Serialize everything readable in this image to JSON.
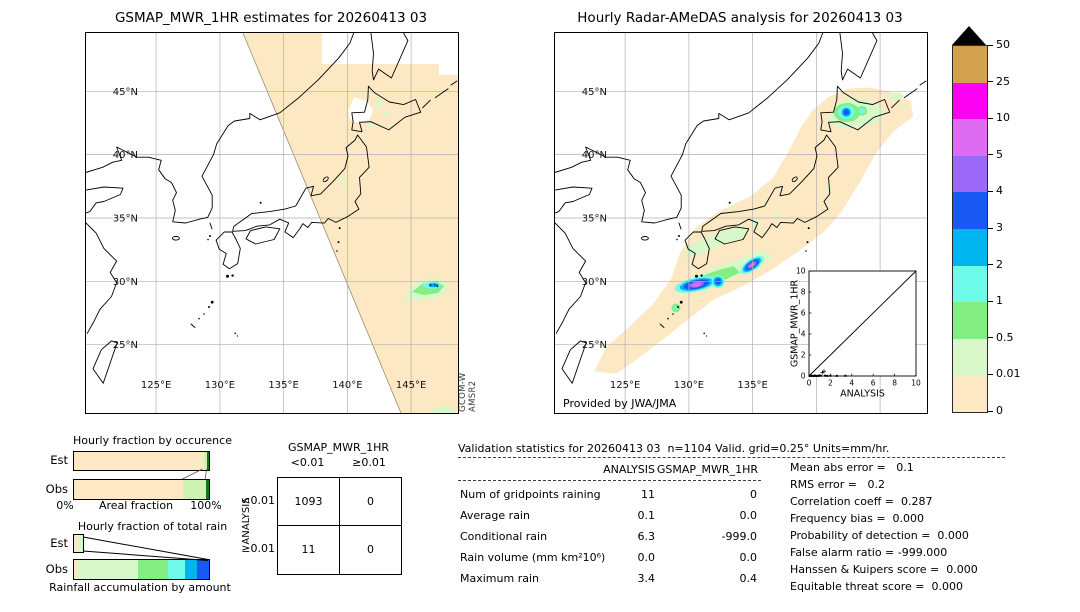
{
  "left_map": {
    "title": "GSMAP_MWR_1HR estimates for 20260413 03",
    "lat_labels": [
      "45°N",
      "40°N",
      "35°N",
      "30°N",
      "25°N"
    ],
    "lon_labels": [
      "125°E",
      "130°E",
      "135°E",
      "140°E",
      "145°E"
    ],
    "credit_lines": [
      "GCOM-W",
      "AMSR2"
    ]
  },
  "right_map": {
    "title": "Hourly Radar-AMeDAS analysis for 20260413 03",
    "lat_labels": [
      "45°N",
      "40°N",
      "35°N",
      "30°N",
      "25°N"
    ],
    "lon_labels": [
      "125°E",
      "130°E",
      "135°E"
    ],
    "provided": "Provided by JWA/JMA",
    "inset": {
      "xlabel": "ANALYSIS",
      "ylabel": "GSMAP_MWR_1HR",
      "tick_labels": [
        "0",
        "2",
        "4",
        "6",
        "8",
        "10"
      ]
    }
  },
  "colorbar": {
    "labels": [
      "50",
      "25",
      "10",
      "5",
      "4",
      "3",
      "2",
      "1",
      "0.5",
      "0.01",
      "0"
    ]
  },
  "occurrence_chart": {
    "title": "Hourly fraction by occurence",
    "row_labels": [
      "Est",
      "Obs"
    ],
    "axis_left": "0%",
    "axis_label": "Areal fraction",
    "axis_right": "100%"
  },
  "totalrain_chart": {
    "title": "Hourly fraction of total rain",
    "row_labels": [
      "Est",
      "Obs"
    ],
    "caption": "Rainfall accumulation by amount"
  },
  "contingency": {
    "title": "GSMAP_MWR_1HR",
    "row_axis": "ANALYSIS",
    "col_labels": [
      "<0.01",
      "≥0.01"
    ],
    "row_labels": [
      "<0.01",
      "≥0.01"
    ],
    "values": [
      [
        "1093",
        "0"
      ],
      [
        "11",
        "0"
      ]
    ]
  },
  "stats": {
    "header": "Validation statistics for 20260413 03  n=1104 Valid. grid=0.25° Units=mm/hr.",
    "col_headers": [
      "ANALYSIS",
      "GSMAP_MWR_1HR"
    ],
    "rows": [
      {
        "label": "Num of gridpoints raining",
        "analysis": "11",
        "gsmap": "0"
      },
      {
        "label": "Average rain",
        "analysis": "0.1",
        "gsmap": "0.0"
      },
      {
        "label": "Conditional rain",
        "analysis": "6.3",
        "gsmap": "-999.0"
      },
      {
        "label": "Rain volume (mm km²10⁶)",
        "analysis": "0.0",
        "gsmap": "0.0"
      },
      {
        "label": "Maximum rain",
        "analysis": "3.4",
        "gsmap": "0.4"
      }
    ],
    "metrics": [
      "Mean abs error =   0.1",
      "RMS error =   0.2",
      "Correlation coeff =  0.287",
      "Frequency bias =  0.000",
      "Probability of detection =  0.000",
      "False alarm ratio = -999.000",
      "Hanssen & Kuipers score =  0.000",
      "Equitable threat score =  0.000"
    ]
  },
  "chart_data": {
    "type": "multi-panel-validation-figure",
    "colorbar": {
      "levels": [
        0,
        0.01,
        0.5,
        1,
        2,
        3,
        4,
        5,
        10,
        25,
        50
      ],
      "units": "mm/hr",
      "colors_top_to_bottom": [
        "#d2a250",
        "#fb02f2",
        "#dd6cf2",
        "#9a69fa",
        "#1a58f3",
        "#00b4ef",
        "#6efbe9",
        "#84ee84",
        "#d9f8ca",
        "#fce9c4"
      ],
      "overflow_arrow_color": "#000000"
    },
    "panels": [
      {
        "type": "heatmap",
        "name": "gsmap-mwr-map",
        "title": "GSMAP_MWR_1HR estimates for 20260413 03",
        "lon_range": [
          119.5,
          148.7
        ],
        "lat_range": [
          19.6,
          49.6
        ],
        "grid_lons": [
          125,
          130,
          135,
          140,
          145
        ],
        "grid_lats": [
          25,
          30,
          35,
          40,
          45
        ],
        "satellite": [
          "GCOM-W",
          "AMSR2"
        ],
        "features": [
          {
            "desc": "valid swath (0 mm/hr tan) east of diagonal swath edge"
          },
          {
            "desc": "light rain patch",
            "lon": 146.0,
            "lat": 29.9,
            "peak_mm_hr": 3
          },
          {
            "desc": "light rain specks over Hokkaido",
            "lon": 142.8,
            "lat": 43.4,
            "peak_mm_hr": 0.5
          }
        ]
      },
      {
        "type": "heatmap",
        "name": "radar-amedas-map",
        "title": "Hourly Radar-AMeDAS analysis for 20260413 03",
        "annotation": "Provided by JWA/JMA",
        "lon_range": [
          119.5,
          148.7
        ],
        "lat_range": [
          19.6,
          49.6
        ],
        "grid_lons": [
          125,
          130,
          135
        ],
        "grid_lats": [
          25,
          30,
          35,
          40,
          45
        ],
        "features": [
          {
            "desc": "SW-NE rain band with cores",
            "cores": [
              {
                "lon": 130.6,
                "lat": 29.8,
                "peak_mm_hr": 10
              },
              {
                "lon": 135.0,
                "lat": 31.3,
                "peak_mm_hr": 10
              },
              {
                "lon": 142.4,
                "lat": 43.4,
                "peak_mm_hr": 4
              }
            ]
          }
        ]
      },
      {
        "type": "scatter",
        "xlabel": "ANALYSIS",
        "ylabel": "GSMAP_MWR_1HR",
        "xlim": [
          0,
          10
        ],
        "ylim": [
          0,
          10
        ],
        "identity_line": true,
        "points": [
          [
            0.05,
            0.02
          ],
          [
            0.1,
            0.0
          ],
          [
            0.2,
            0.03
          ],
          [
            0.3,
            0.01
          ],
          [
            0.45,
            0.0
          ],
          [
            0.55,
            0.04
          ],
          [
            0.65,
            0.01
          ],
          [
            0.8,
            0.0
          ],
          [
            0.9,
            0.02
          ],
          [
            1.0,
            0.05
          ],
          [
            1.1,
            0.02
          ],
          [
            1.5,
            0.03
          ],
          [
            1.7,
            0.01
          ],
          [
            2.0,
            0.02
          ],
          [
            2.6,
            0.01
          ],
          [
            3.4,
            0.02
          ]
        ],
        "plus_points": [
          [
            1.25,
            0.33
          ],
          [
            1.4,
            0.45
          ]
        ]
      },
      {
        "type": "bar",
        "name": "hourly-fraction-by-occurrence",
        "orientation": "horizontal",
        "categories": [
          "Est",
          "Obs"
        ],
        "xlabel": "Areal fraction",
        "xlim_pct": [
          0,
          100
        ],
        "rows": {
          "Est": [
            {
              "color": "#fce9c4",
              "pct": 96.0
            },
            {
              "color": "#cdf2b4",
              "pct": 2.5
            },
            {
              "color": "#0d7a12",
              "pct": 1.5
            }
          ],
          "Obs": [
            {
              "color": "#fce9c4",
              "pct": 81.0
            },
            {
              "color": "#cdf2b4",
              "pct": 17.0
            },
            {
              "color": "#0d7a12",
              "pct": 2.0
            }
          ]
        }
      },
      {
        "type": "bar",
        "name": "hourly-fraction-of-total-rain",
        "orientation": "horizontal",
        "categories": [
          "Est",
          "Obs"
        ],
        "xlabel": "Rainfall accumulation by amount",
        "rows": {
          "Est": [
            {
              "color": "#fce9c4",
              "pct": 2.0
            },
            {
              "color": "#d9f8ca",
              "pct": 4.7
            }
          ],
          "Obs": [
            {
              "color": "#fce9c4",
              "pct": 2.0
            },
            {
              "color": "#d9f8ca",
              "pct": 45.6
            },
            {
              "color": "#84ee84",
              "pct": 22.3
            },
            {
              "color": "#6efbe9",
              "pct": 12.3
            },
            {
              "color": "#00b4ef",
              "pct": 8.6
            },
            {
              "color": "#1a58f3",
              "pct": 9.2
            }
          ]
        }
      },
      {
        "type": "table",
        "name": "contingency",
        "columns": [
          "GSMAP_MWR_1HR <0.01",
          "GSMAP_MWR_1HR ≥0.01"
        ],
        "rows": [
          "ANALYSIS <0.01",
          "ANALYSIS ≥0.01"
        ],
        "values": [
          [
            1093,
            0
          ],
          [
            11,
            0
          ]
        ]
      },
      {
        "type": "table",
        "name": "validation-statistics",
        "n": 1104,
        "grid_deg": 0.25,
        "units": "mm/hr",
        "columns": [
          "ANALYSIS",
          "GSMAP_MWR_1HR"
        ],
        "rows": [
          [
            "Num of gridpoints raining",
            11,
            0
          ],
          [
            "Average rain",
            0.1,
            0.0
          ],
          [
            "Conditional rain",
            6.3,
            -999.0
          ],
          [
            "Rain volume (mm km²10⁶)",
            0.0,
            0.0
          ],
          [
            "Maximum rain",
            3.4,
            0.4
          ]
        ],
        "metrics": {
          "Mean abs error": 0.1,
          "RMS error": 0.2,
          "Correlation coeff": 0.287,
          "Frequency bias": 0.0,
          "Probability of detection": 0.0,
          "False alarm ratio": -999.0,
          "Hanssen & Kuipers score": 0.0,
          "Equitable threat score": 0.0
        }
      }
    ]
  }
}
